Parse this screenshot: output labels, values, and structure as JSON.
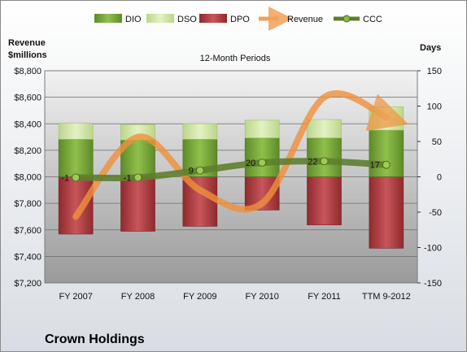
{
  "chart_data": {
    "type": "bar",
    "subtitle": "12-Month Periods",
    "company": "Crown Holdings",
    "left_axis_label_line1": "Revenue",
    "left_axis_label_line2": "$millions",
    "right_axis_label": "Days",
    "categories": [
      "FY 2007",
      "FY 2008",
      "FY 2009",
      "FY 2010",
      "FY 2011",
      "TTM 9-2012"
    ],
    "left_ylim": [
      7200,
      8800
    ],
    "left_ticks": [
      "$7,200",
      "$7,400",
      "$7,600",
      "$7,800",
      "$8,000",
      "$8,200",
      "$8,400",
      "$8,600",
      "$8,800"
    ],
    "right_ylim": [
      -150,
      150
    ],
    "right_ticks": [
      "-150",
      "-100",
      "-50",
      "0",
      "50",
      "100",
      "150"
    ],
    "legend_position": "top",
    "legend": [
      "DIO",
      "DSO",
      "DPO",
      "Revenue",
      "CCC"
    ],
    "colors": {
      "DIO": "#7aa83a",
      "DSO": "#d3e7a6",
      "DPO": "#b23a3f",
      "Revenue": "#f0913c",
      "CCC": "#5e7f2e"
    },
    "series": [
      {
        "name": "DIO",
        "values": [
          53,
          52,
          53,
          55,
          55,
          66
        ]
      },
      {
        "name": "DSO",
        "values": [
          23,
          22,
          22,
          25,
          26,
          33
        ]
      },
      {
        "name": "DPO",
        "values": [
          -81,
          -77,
          -70,
          -47,
          -68,
          -101
        ]
      },
      {
        "name": "Revenue",
        "values": [
          7700,
          8300,
          7900,
          7800,
          8600,
          8450
        ]
      },
      {
        "name": "CCC",
        "values": [
          -1,
          -1,
          9,
          20,
          22,
          17
        ]
      }
    ],
    "ccc_labels": [
      "-1",
      "-1",
      "9",
      "20",
      "22",
      "17"
    ]
  }
}
